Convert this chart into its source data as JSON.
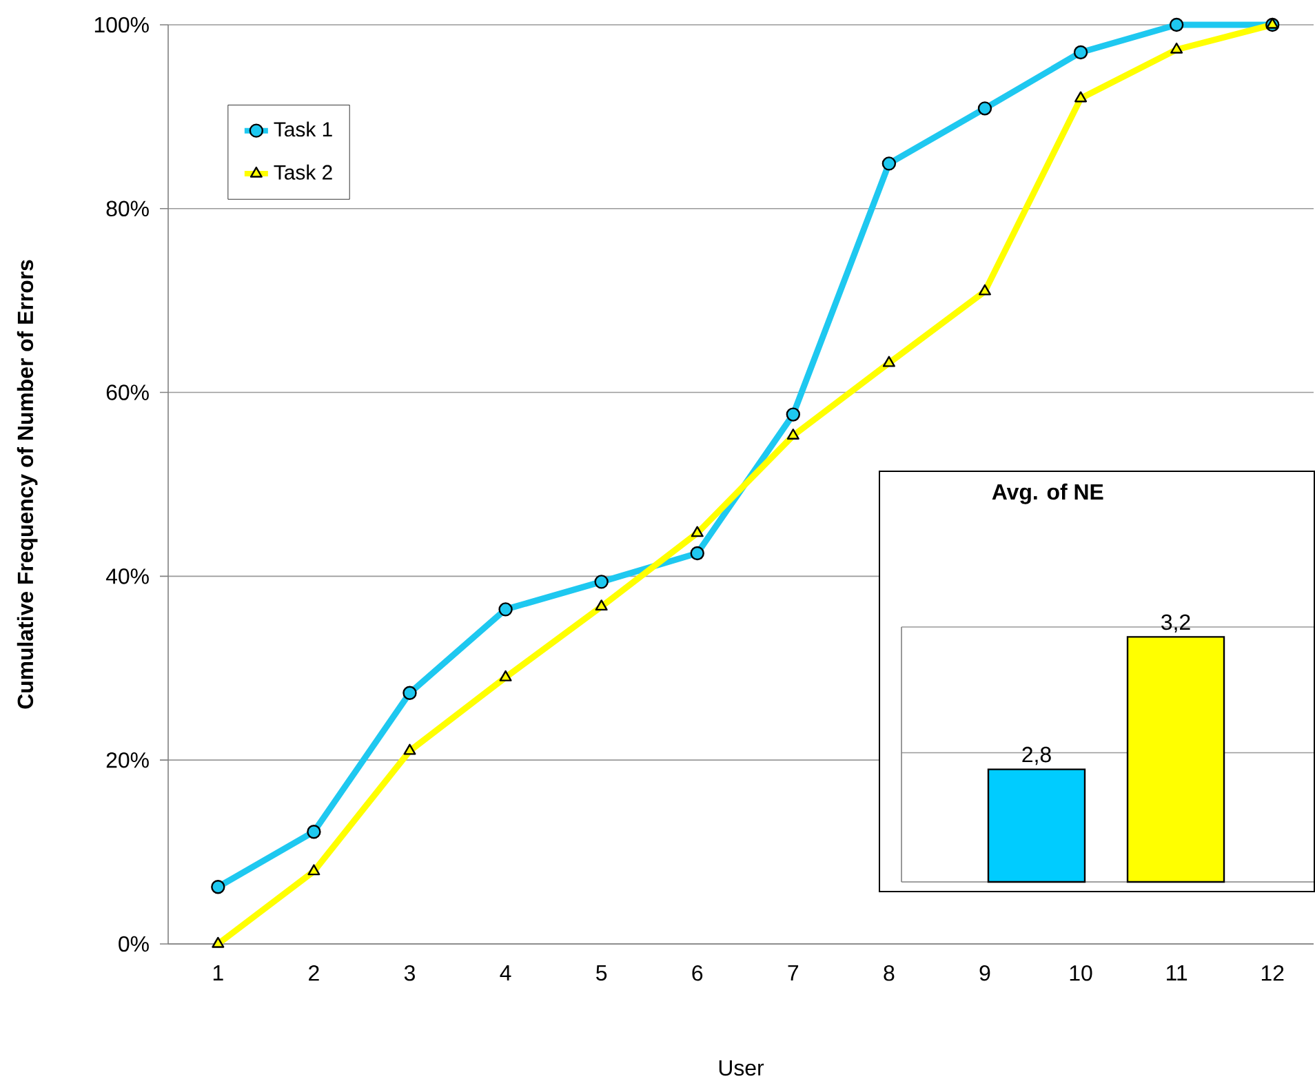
{
  "chart_data": [
    {
      "type": "line",
      "xlabel": "User",
      "ylabel": "Cumulative Frequency of Number of Errors",
      "categories": [
        "1",
        "2",
        "3",
        "4",
        "5",
        "6",
        "7",
        "8",
        "9",
        "10",
        "11",
        "12"
      ],
      "series": [
        {
          "name": "Task 1",
          "color": "#1ec8f0",
          "marker": "circle",
          "values": [
            6.2,
            12.2,
            27.3,
            36.4,
            39.4,
            42.5,
            57.6,
            84.9,
            90.9,
            97.0,
            100,
            100
          ]
        },
        {
          "name": "Task 2",
          "color": "#ffff00",
          "marker": "triangle",
          "values": [
            0,
            7.9,
            21.0,
            29.0,
            36.7,
            44.7,
            55.3,
            63.2,
            71.0,
            92.0,
            97.3,
            100
          ]
        }
      ],
      "ylim": [
        0,
        100
      ],
      "yticks": [
        {
          "value": 0,
          "label": "0%"
        },
        {
          "value": 20,
          "label": "20%"
        },
        {
          "value": 40,
          "label": "40%"
        },
        {
          "value": 60,
          "label": "60%"
        },
        {
          "value": 80,
          "label": "80%"
        },
        {
          "value": 100,
          "label": "100%"
        }
      ],
      "grid": "y",
      "legend": "top left",
      "line_style": "solid"
    },
    {
      "type": "bar",
      "title": "Avg. of NE",
      "categories": [
        null,
        null
      ],
      "values": [
        2.8,
        3.2
      ],
      "colors": [
        "#00ccff",
        "#ffff00"
      ],
      "value_labels": [
        "2,8",
        "3,2"
      ],
      "ylim": [
        2.46,
        3.23
      ],
      "yticks": [
        {
          "value": 2.85,
          "label": null
        },
        {
          "value": 3.23,
          "label": null
        }
      ],
      "grid": "y"
    }
  ]
}
